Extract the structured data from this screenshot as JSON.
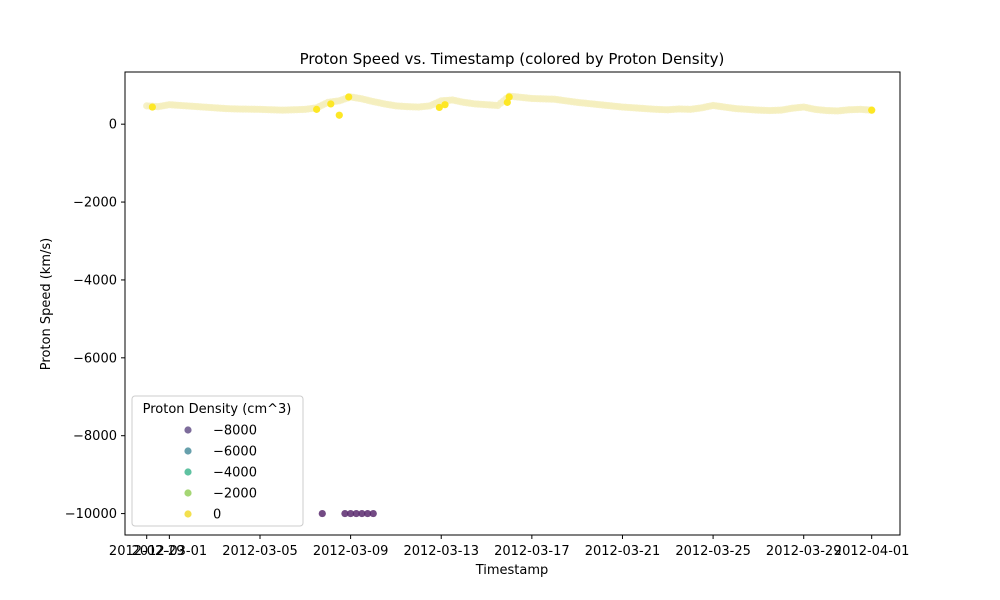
{
  "chart_data": {
    "type": "scatter",
    "title": "Proton Speed vs. Timestamp (colored by Proton Density)",
    "xlabel": "Timestamp",
    "ylabel": "Proton Speed (km/s)",
    "xlim": [
      "2012-02-28T01:00",
      "2012-04-02T06:00"
    ],
    "ylim": [
      -10550,
      1340
    ],
    "x_ticks": [
      "2012-02-29",
      "2012-03-01",
      "2012-03-05",
      "2012-03-09",
      "2012-03-13",
      "2012-03-17",
      "2012-03-21",
      "2012-03-25",
      "2012-03-29",
      "2012-04-01"
    ],
    "y_ticks": [
      0,
      -2000,
      -4000,
      -6000,
      -8000,
      -10000
    ],
    "y_tick_labels": [
      "0",
      "−2000",
      "−4000",
      "−6000",
      "−8000",
      "−10000"
    ],
    "grid": false,
    "legend": {
      "title": "Proton Density (cm^3)",
      "placement": "lower-left",
      "entries": [
        {
          "label": "−8000",
          "color": "#7d6c9b"
        },
        {
          "label": "−6000",
          "color": "#67a0ac"
        },
        {
          "label": "−4000",
          "color": "#5fc2a1"
        },
        {
          "label": "−2000",
          "color": "#a5d674"
        },
        {
          "label": "0",
          "color": "#f3e04e"
        }
      ]
    },
    "colors": {
      "normal": "#f5eebd",
      "high_density": "#fde725",
      "fill_value": "#5b2a6e"
    },
    "series": [
      {
        "role": "solar-wind-speed-normal-density",
        "x": [
          "2012-02-29T00:00",
          "2012-02-29T12:00",
          "2012-03-01T00:00",
          "2012-03-01T12:00",
          "2012-03-02T00:00",
          "2012-03-02T12:00",
          "2012-03-03T00:00",
          "2012-03-03T12:00",
          "2012-03-04T00:00",
          "2012-03-04T12:00",
          "2012-03-05T00:00",
          "2012-03-05T12:00",
          "2012-03-06T00:00",
          "2012-03-06T12:00",
          "2012-03-07T00:00",
          "2012-03-07T12:00",
          "2012-03-08T00:00",
          "2012-03-08T12:00",
          "2012-03-09T00:00",
          "2012-03-09T12:00",
          "2012-03-10T00:00",
          "2012-03-10T12:00",
          "2012-03-11T00:00",
          "2012-03-11T12:00",
          "2012-03-12T00:00",
          "2012-03-12T12:00",
          "2012-03-13T00:00",
          "2012-03-13T12:00",
          "2012-03-14T00:00",
          "2012-03-14T12:00",
          "2012-03-15T00:00",
          "2012-03-15T12:00",
          "2012-03-16T00:00",
          "2012-03-16T12:00",
          "2012-03-17T00:00",
          "2012-03-17T12:00",
          "2012-03-18T00:00",
          "2012-03-18T12:00",
          "2012-03-19T00:00",
          "2012-03-19T12:00",
          "2012-03-20T00:00",
          "2012-03-20T12:00",
          "2012-03-21T00:00",
          "2012-03-21T12:00",
          "2012-03-22T00:00",
          "2012-03-22T12:00",
          "2012-03-23T00:00",
          "2012-03-23T12:00",
          "2012-03-24T00:00",
          "2012-03-24T12:00",
          "2012-03-25T00:00",
          "2012-03-25T12:00",
          "2012-03-26T00:00",
          "2012-03-26T12:00",
          "2012-03-27T00:00",
          "2012-03-27T12:00",
          "2012-03-28T00:00",
          "2012-03-28T12:00",
          "2012-03-29T00:00",
          "2012-03-29T12:00",
          "2012-03-30T00:00",
          "2012-03-30T12:00",
          "2012-03-31T00:00",
          "2012-03-31T12:00",
          "2012-04-01T00:00"
        ],
        "y": [
          470,
          450,
          500,
          480,
          460,
          440,
          420,
          400,
          390,
          385,
          380,
          370,
          360,
          370,
          380,
          420,
          560,
          600,
          700,
          650,
          580,
          520,
          470,
          450,
          440,
          470,
          600,
          620,
          560,
          520,
          500,
          480,
          720,
          690,
          660,
          650,
          640,
          600,
          560,
          530,
          500,
          470,
          440,
          420,
          400,
          380,
          370,
          390,
          380,
          420,
          480,
          440,
          400,
          380,
          360,
          350,
          360,
          410,
          440,
          380,
          350,
          340,
          370,
          380,
          360
        ]
      },
      {
        "role": "high-density-points",
        "x": [
          "2012-02-29T06:00",
          "2012-03-07T12:00",
          "2012-03-08T03:00",
          "2012-03-08T12:00",
          "2012-03-08T22:00",
          "2012-03-12T22:00",
          "2012-03-13T04:00",
          "2012-03-15T22:00",
          "2012-03-16T00:00",
          "2012-04-01T00:00"
        ],
        "y": [
          440,
          380,
          520,
          230,
          700,
          430,
          500,
          560,
          700,
          360
        ]
      },
      {
        "role": "fill-value-points",
        "x": [
          "2012-03-07T18:00",
          "2012-03-08T18:00",
          "2012-03-09T00:00",
          "2012-03-09T06:00",
          "2012-03-09T12:00",
          "2012-03-09T18:00",
          "2012-03-10T00:00"
        ],
        "y": [
          -10000,
          -10000,
          -10000,
          -10000,
          -10000,
          -10000,
          -10000
        ]
      }
    ]
  }
}
